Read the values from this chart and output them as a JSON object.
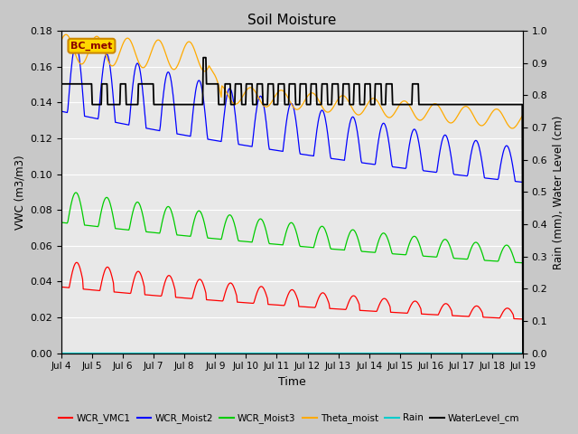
{
  "title": "Soil Moisture",
  "xlabel": "Time",
  "ylabel_left": "VWC (m3/m3)",
  "ylabel_right": "Rain (mm), Water Level (cm)",
  "ylim_left": [
    0.0,
    0.18
  ],
  "ylim_right": [
    0.0,
    1.0
  ],
  "yticks_left": [
    0.0,
    0.02,
    0.04,
    0.06,
    0.08,
    0.1,
    0.12,
    0.14,
    0.16,
    0.18
  ],
  "yticks_right": [
    0.0,
    0.1,
    0.2,
    0.3,
    0.4,
    0.5,
    0.6,
    0.7,
    0.8,
    0.9,
    1.0
  ],
  "xtick_labels": [
    "Jul 4",
    "Jul 5",
    "Jul 6",
    "Jul 7",
    "Jul 8",
    "Jul 9",
    "Jul 10",
    "Jul 11",
    "Jul 12",
    "Jul 13",
    "Jul 14",
    "Jul 15",
    "Jul 16",
    "Jul 17",
    "Jul 18",
    "Jul 19"
  ],
  "fig_bg_color": "#c8c8c8",
  "ax_bg_color": "#e8e8e8",
  "grid_color": "#ffffff",
  "legend_colors": [
    "#ff0000",
    "#0000ff",
    "#00cc00",
    "#ffaa00",
    "#00cccc",
    "#000000"
  ],
  "legend_labels": [
    "WCR_VMC1",
    "WCR_Moist2",
    "WCR_Moist3",
    "Theta_moist",
    "Rain",
    "WaterLevel_cm"
  ],
  "annotation_text": "BC_met",
  "annotation_fg": "#8B0000",
  "annotation_bg": "#FFD700",
  "annotation_edge": "#cc8800"
}
